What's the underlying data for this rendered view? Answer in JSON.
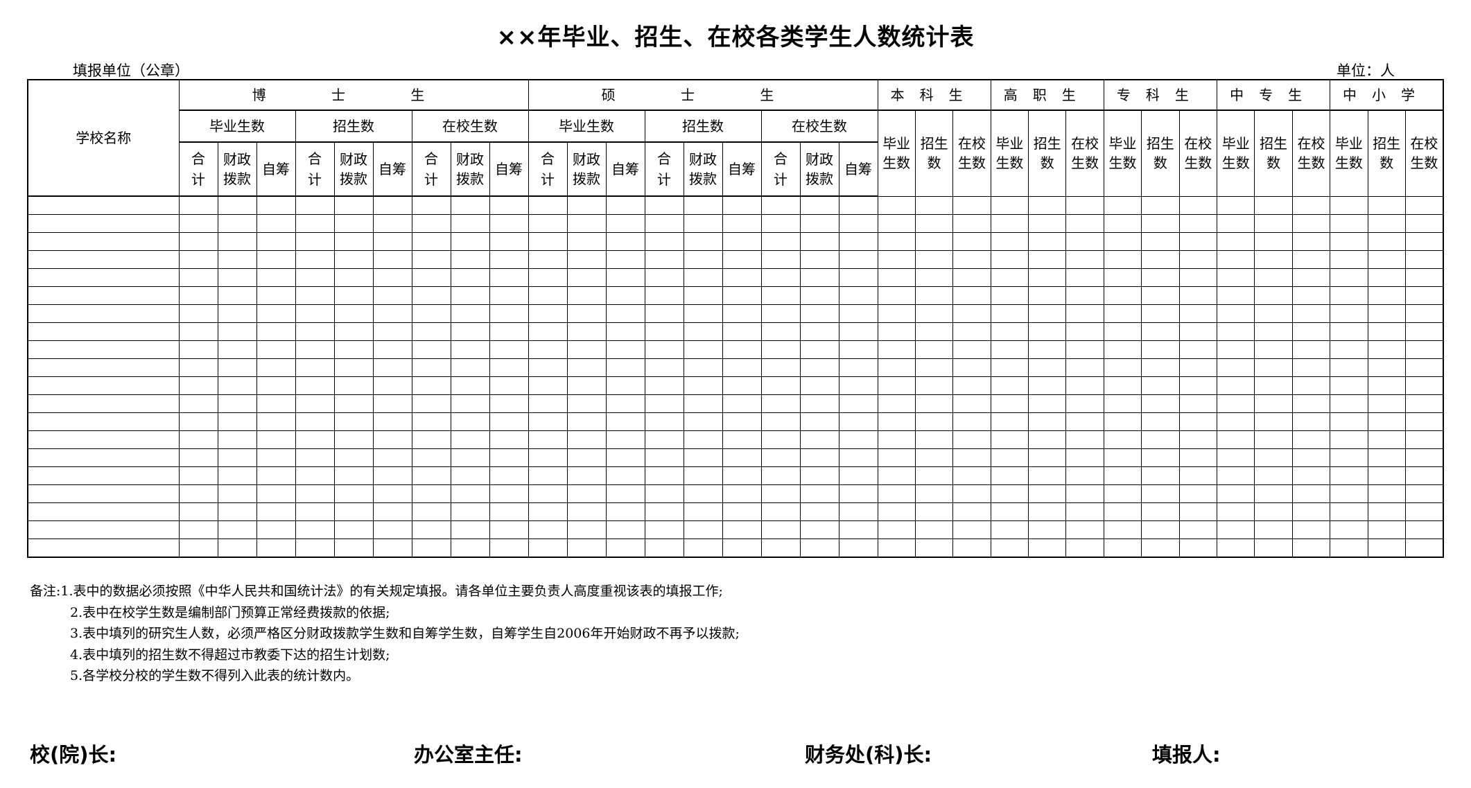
{
  "title": "××年毕业、招生、在校各类学生人数统计表",
  "fill_unit_label": "填报单位（公章）",
  "unit_label": "单位：人",
  "table": {
    "school_name_header": "学校名称",
    "graduate_groups": [
      {
        "label": "博 士 生",
        "sub": [
          "毕业生数",
          "招生数",
          "在校生数"
        ],
        "cols": [
          "合计",
          "财政拨款",
          "自筹"
        ]
      },
      {
        "label": "硕 士 生",
        "sub": [
          "毕业生数",
          "招生数",
          "在校生数"
        ],
        "cols": [
          "合计",
          "财政拨款",
          "自筹"
        ]
      }
    ],
    "other_groups": [
      {
        "label": "本科生",
        "cols": [
          "毕业生数",
          "招生数",
          "在校生数"
        ]
      },
      {
        "label": "高职生",
        "cols": [
          "毕业生数",
          "招生数",
          "在校生数"
        ]
      },
      {
        "label": "专科生",
        "cols": [
          "毕业生数",
          "招生数",
          "在校生数"
        ]
      },
      {
        "label": "中专生",
        "cols": [
          "毕业生数",
          "招生数",
          "在校生数"
        ]
      },
      {
        "label": "中小学",
        "cols": [
          "毕业生数",
          "招生数",
          "在校生数"
        ]
      }
    ]
  },
  "notes": [
    "备注:1.表中的数据必须按照《中华人民共和国统计法》的有关规定填报。请各单位主要负责人高度重视该表的填报工作;",
    "2.表中在校学生数是编制部门预算正常经费拨款的依据;",
    "3.表中填列的研究生人数，必须严格区分财政拨款学生数和自筹学生数，自筹学生自2006年开始财政不再予以拨款;",
    "4.表中填列的招生数不得超过市教委下达的招生计划数;",
    "5.各学校分校的学生数不得列入此表的统计数内。"
  ],
  "signatures": [
    "校(院)长:",
    "办公室主任:",
    "财务处(科)长:",
    "填报人:"
  ]
}
